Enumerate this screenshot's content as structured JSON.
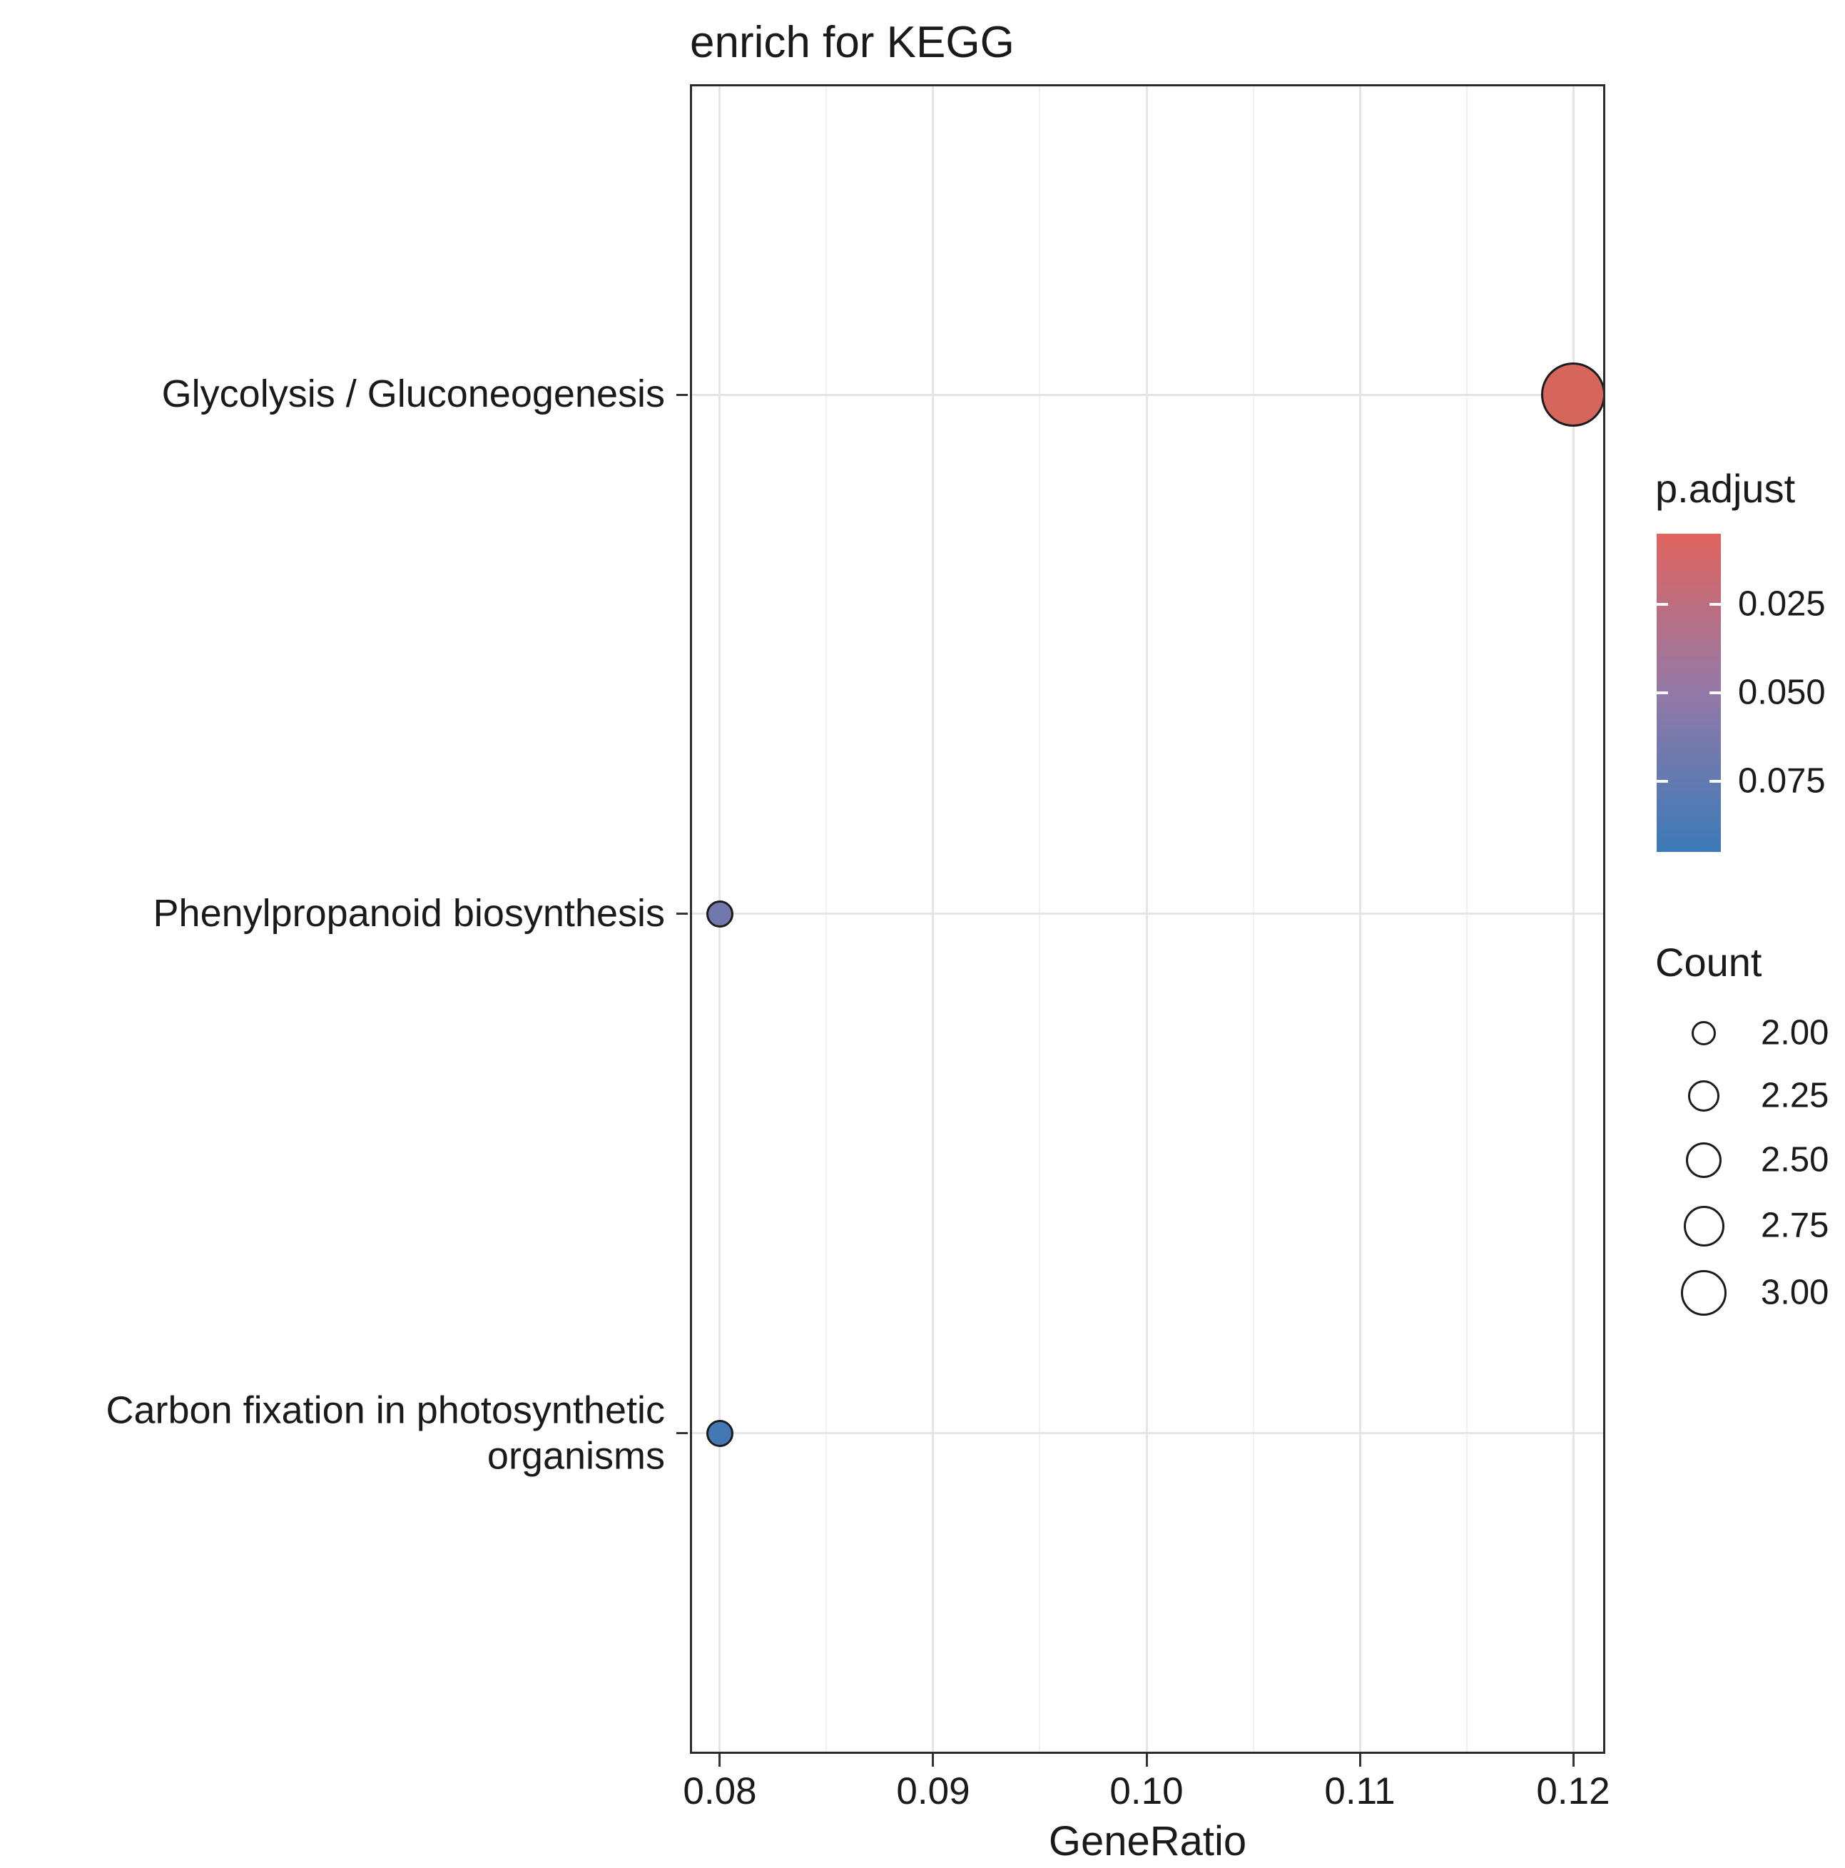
{
  "title": "enrich for KEGG",
  "chart_data": {
    "type": "scatter",
    "title": "enrich for KEGG",
    "xlabel": "GeneRatio",
    "ylabel": "",
    "grid": true,
    "legend_position": "right",
    "xlim": [
      0.0786,
      0.1215
    ],
    "x_ticks": [
      0.08,
      0.09,
      0.1,
      0.11,
      0.12
    ],
    "x_tick_labels": [
      "0.08",
      "0.09",
      "0.10",
      "0.11",
      "0.12"
    ],
    "categories": [
      "Glycolysis / Gluconeogenesis",
      "Phenylpropanoid biosynthesis",
      "Carbon fixation in photosynthetic organisms"
    ],
    "points": [
      {
        "pathway": "Glycolysis / Gluconeogenesis",
        "gene_ratio": 0.12,
        "count": 3,
        "p_adjust": 0.01,
        "color": "#D6655C"
      },
      {
        "pathway": "Phenylpropanoid biosynthesis",
        "gene_ratio": 0.08,
        "count": 2,
        "p_adjust": 0.075,
        "color": "#7277AE"
      },
      {
        "pathway": "Carbon fixation in photosynthetic organisms",
        "gene_ratio": 0.08,
        "count": 2,
        "p_adjust": 0.09,
        "color": "#4478B5"
      }
    ],
    "legend": {
      "color": {
        "label": "p.adjust",
        "tick_labels": [
          "0.025",
          "0.050",
          "0.075"
        ],
        "tick_values": [
          0.025,
          0.05,
          0.075
        ],
        "range": [
          0.005,
          0.095
        ],
        "top_color": "#E0645F",
        "mid_color": "#9379A7",
        "bottom_color": "#3B7AB8"
      },
      "size": {
        "label": "Count",
        "entries": [
          "2.00",
          "2.25",
          "2.50",
          "2.75",
          "3.00"
        ],
        "values": [
          2.0,
          2.25,
          2.5,
          2.75,
          3.0
        ]
      }
    }
  },
  "style": {
    "grid_major_color": "#e5e5e5",
    "grid_minor_color": "#f1f1f1",
    "axis_tick_color": "#333333",
    "point_outline_color": "#1c1c1c",
    "panel_border_color": "#2b2b2b",
    "text_color": "#1a1a1a"
  }
}
